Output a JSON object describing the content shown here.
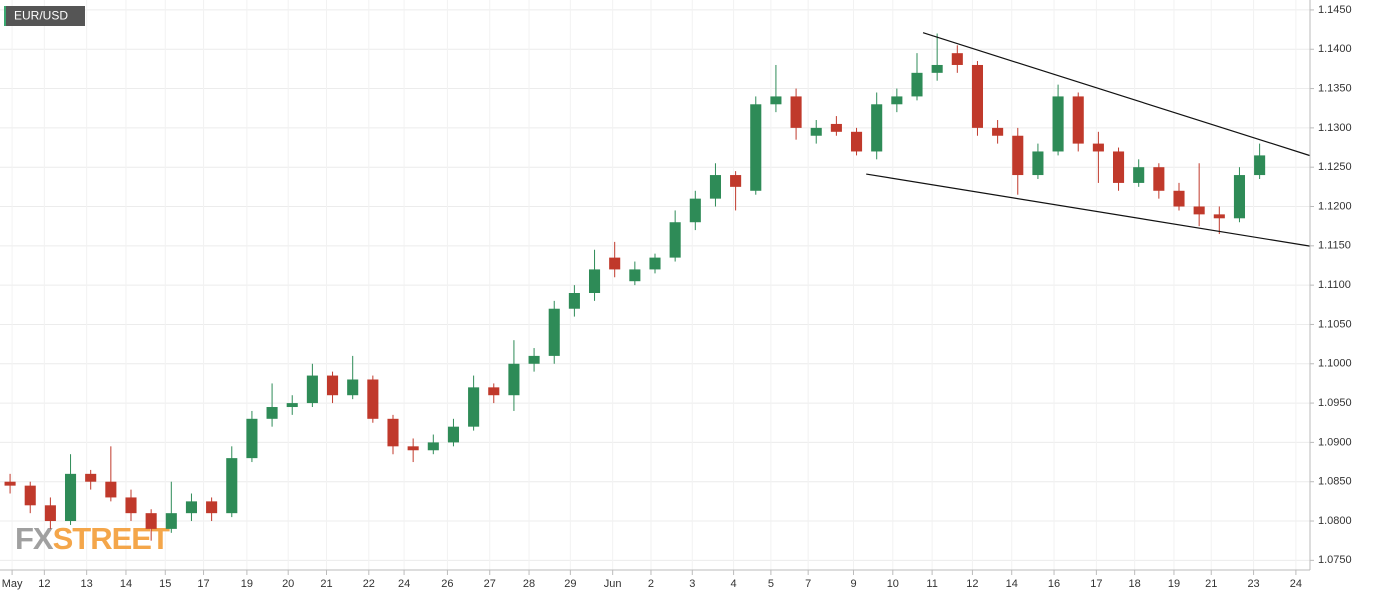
{
  "chart_data": {
    "type": "candlestick",
    "title": "EUR/USD",
    "logo": [
      "FX",
      "STREET"
    ],
    "open": [
      1.085,
      1.0845,
      1.082,
      1.08,
      1.086,
      1.085,
      1.083,
      1.081,
      1.079,
      1.081,
      1.0825,
      1.081,
      1.088,
      1.093,
      1.0945,
      1.095,
      1.0985,
      1.096,
      1.098,
      1.093,
      1.0895,
      1.089,
      1.09,
      1.092,
      1.097,
      1.096,
      1.1,
      1.101,
      1.107,
      1.109,
      1.1135,
      1.1105,
      1.112,
      1.1135,
      1.118,
      1.121,
      1.124,
      1.122,
      1.133,
      1.134,
      1.129,
      1.1305,
      1.1295,
      1.127,
      1.133,
      1.134,
      1.137,
      1.1395,
      1.138,
      1.13,
      1.129,
      1.124,
      1.127,
      1.134,
      1.128,
      1.127,
      1.123,
      1.125,
      1.122,
      1.12,
      1.119,
      1.1185,
      1.124
    ],
    "high": [
      1.086,
      1.085,
      1.083,
      1.0885,
      1.0865,
      1.0895,
      1.084,
      1.0815,
      1.085,
      1.0835,
      1.083,
      1.0895,
      1.094,
      1.0975,
      1.096,
      1.1,
      1.099,
      1.101,
      1.0985,
      1.0935,
      1.0905,
      1.091,
      1.093,
      1.0985,
      1.0975,
      1.103,
      1.102,
      1.108,
      1.11,
      1.1145,
      1.1155,
      1.113,
      1.114,
      1.1195,
      1.122,
      1.1255,
      1.1245,
      1.134,
      1.138,
      1.135,
      1.131,
      1.1315,
      1.13,
      1.1345,
      1.135,
      1.1395,
      1.142,
      1.1405,
      1.1385,
      1.131,
      1.13,
      1.128,
      1.1355,
      1.1345,
      1.1295,
      1.1275,
      1.126,
      1.1255,
      1.123,
      1.1255,
      1.12,
      1.125,
      1.128
    ],
    "low": [
      1.0835,
      1.081,
      1.079,
      1.0795,
      1.084,
      1.0825,
      1.08,
      1.0775,
      1.0785,
      1.08,
      1.08,
      1.0805,
      1.0875,
      1.092,
      1.0935,
      1.0945,
      1.095,
      1.0955,
      1.0925,
      1.0885,
      1.0875,
      1.0885,
      1.0895,
      1.0915,
      1.095,
      1.094,
      1.099,
      1.1,
      1.106,
      1.108,
      1.111,
      1.11,
      1.1115,
      1.113,
      1.117,
      1.12,
      1.1195,
      1.1215,
      1.132,
      1.1285,
      1.128,
      1.129,
      1.1265,
      1.126,
      1.132,
      1.1335,
      1.136,
      1.137,
      1.129,
      1.128,
      1.1215,
      1.1235,
      1.1265,
      1.127,
      1.123,
      1.122,
      1.1225,
      1.121,
      1.1195,
      1.1175,
      1.1165,
      1.118,
      1.1235
    ],
    "close": [
      1.0845,
      1.082,
      1.08,
      1.086,
      1.085,
      1.083,
      1.081,
      1.079,
      1.081,
      1.0825,
      1.081,
      1.088,
      1.093,
      1.0945,
      1.095,
      1.0985,
      1.096,
      1.098,
      1.093,
      1.0895,
      1.089,
      1.09,
      1.092,
      1.097,
      1.096,
      1.1,
      1.101,
      1.107,
      1.109,
      1.112,
      1.112,
      1.112,
      1.1135,
      1.118,
      1.121,
      1.124,
      1.1225,
      1.133,
      1.134,
      1.13,
      1.13,
      1.1295,
      1.127,
      1.133,
      1.134,
      1.137,
      1.138,
      1.138,
      1.13,
      1.129,
      1.124,
      1.127,
      1.134,
      1.128,
      1.127,
      1.123,
      1.125,
      1.122,
      1.12,
      1.119,
      1.1185,
      1.124,
      1.1265
    ],
    "up_color": "#2e8b57",
    "down_color": "#c0392b",
    "trendlines": [
      {
        "x": [
          45.8,
          65
        ],
        "y": [
          1.1421,
          1.12647
        ]
      },
      {
        "x": [
          42.98,
          65
        ],
        "y": [
          1.12413,
          1.11496
        ]
      }
    ],
    "grid": true,
    "xlim": [
      0,
      65
    ],
    "xticks": [
      {
        "value": 0.6,
        "label": "May"
      },
      {
        "value": 2.2,
        "label": "12"
      },
      {
        "value": 4.3,
        "label": "13"
      },
      {
        "value": 6.25,
        "label": "14"
      },
      {
        "value": 8.2,
        "label": "15"
      },
      {
        "value": 10.1,
        "label": "17"
      },
      {
        "value": 12.25,
        "label": "19"
      },
      {
        "value": 14.3,
        "label": "20"
      },
      {
        "value": 16.2,
        "label": "21"
      },
      {
        "value": 18.3,
        "label": "22"
      },
      {
        "value": 20.05,
        "label": "24"
      },
      {
        "value": 22.2,
        "label": "26"
      },
      {
        "value": 24.3,
        "label": "27"
      },
      {
        "value": 26.25,
        "label": "28"
      },
      {
        "value": 28.3,
        "label": "29"
      },
      {
        "value": 30.4,
        "label": "Jun"
      },
      {
        "value": 32.3,
        "label": "2"
      },
      {
        "value": 34.35,
        "label": "3"
      },
      {
        "value": 36.4,
        "label": "4"
      },
      {
        "value": 38.25,
        "label": "5"
      },
      {
        "value": 40.1,
        "label": "7"
      },
      {
        "value": 42.35,
        "label": "9"
      },
      {
        "value": 44.3,
        "label": "10"
      },
      {
        "value": 46.25,
        "label": "11"
      },
      {
        "value": 48.25,
        "label": "12"
      },
      {
        "value": 50.2,
        "label": "14"
      },
      {
        "value": 52.3,
        "label": "16"
      },
      {
        "value": 54.4,
        "label": "17"
      },
      {
        "value": 56.3,
        "label": "18"
      },
      {
        "value": 58.25,
        "label": "19"
      },
      {
        "value": 60.1,
        "label": "21"
      },
      {
        "value": 62.2,
        "label": "23"
      },
      {
        "value": 64.3,
        "label": "24"
      }
    ],
    "ylim": [
      1.0725,
      1.1455
    ],
    "yticks": [
      {
        "value": 1.075,
        "label": "1.0750"
      },
      {
        "value": 1.08,
        "label": "1.0800"
      },
      {
        "value": 1.085,
        "label": "1.0850"
      },
      {
        "value": 1.09,
        "label": "1.0900"
      },
      {
        "value": 1.095,
        "label": "1.0950"
      },
      {
        "value": 1.1,
        "label": "1.1000"
      },
      {
        "value": 1.105,
        "label": "1.1050"
      },
      {
        "value": 1.11,
        "label": "1.1100"
      },
      {
        "value": 1.115,
        "label": "1.1150"
      },
      {
        "value": 1.12,
        "label": "1.1200"
      },
      {
        "value": 1.125,
        "label": "1.1250"
      },
      {
        "value": 1.13,
        "label": "1.1300"
      },
      {
        "value": 1.135,
        "label": "1.1350"
      },
      {
        "value": 1.14,
        "label": "1.1400"
      },
      {
        "value": 1.145,
        "label": "1.1450"
      }
    ]
  }
}
